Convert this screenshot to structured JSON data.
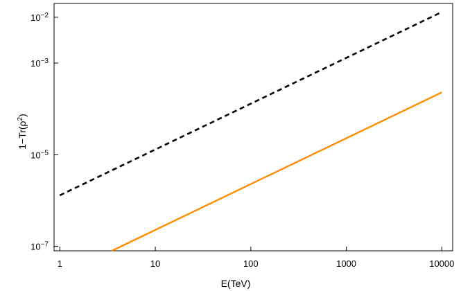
{
  "chart_data": {
    "type": "line",
    "xlabel": "E(TeV)",
    "ylabel": "1−Tr(ρ²)",
    "x_scale": "log",
    "y_scale": "log",
    "xlim": [
      0.87,
      13000
    ],
    "ylim": [
      8e-08,
      0.02
    ],
    "grid": false,
    "x_ticks": [
      {
        "value": 1,
        "label": "1"
      },
      {
        "value": 10,
        "label": "10"
      },
      {
        "value": 100,
        "label": "100"
      },
      {
        "value": 1000,
        "label": "1000"
      },
      {
        "value": 10000,
        "label": "10000"
      }
    ],
    "y_ticks": [
      {
        "value": 1e-07,
        "mantissa": "10",
        "exponent": "−7"
      },
      {
        "value": 1e-05,
        "mantissa": "10",
        "exponent": "−5"
      },
      {
        "value": 0.001,
        "mantissa": "10",
        "exponent": "−3"
      },
      {
        "value": 0.01,
        "mantissa": "10",
        "exponent": "−2"
      }
    ],
    "series": [
      {
        "color": "#000000",
        "style": "dashed",
        "x": [
          1,
          10000
        ],
        "y": [
          1.3e-06,
          0.013
        ]
      },
      {
        "color": "#ff8c00",
        "style": "solid",
        "x": [
          3.5,
          10000
        ],
        "y": [
          8e-08,
          0.00023
        ]
      }
    ]
  }
}
